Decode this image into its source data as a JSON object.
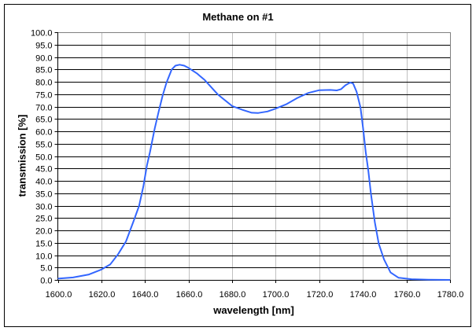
{
  "chart_data": {
    "type": "line",
    "title": "Methane on  #1",
    "xlabel": "wavelength [nm]",
    "ylabel": "transmission [%]",
    "xlim": [
      1600,
      1780
    ],
    "ylim": [
      0,
      100
    ],
    "x_ticks": [
      "1600.0",
      "1620.0",
      "1640.0",
      "1660.0",
      "1680.0",
      "1700.0",
      "1720.0",
      "1740.0",
      "1760.0",
      "1780.0"
    ],
    "y_ticks": [
      "0.0",
      "5.0",
      "10.0",
      "15.0",
      "20.0",
      "25.0",
      "30.0",
      "35.0",
      "40.0",
      "45.0",
      "50.0",
      "55.0",
      "60.0",
      "65.0",
      "70.0",
      "75.0",
      "80.0",
      "85.0",
      "90.0",
      "95.0",
      "100.0"
    ],
    "grid": {
      "horizontal": true,
      "vertical": true,
      "horizontal_color": "#000000",
      "vertical_color": "#c0c0c0"
    },
    "legend": null,
    "series": [
      {
        "name": "Methane on #1",
        "color": "#3366ff",
        "x": [
          1600,
          1607,
          1614.3,
          1620,
          1624.1,
          1627.7,
          1631.3,
          1634.9,
          1637.3,
          1639.3,
          1640.9,
          1642.3,
          1644.5,
          1646.3,
          1648.1,
          1649.9,
          1652.3,
          1654,
          1655.9,
          1658,
          1660,
          1663.8,
          1667.4,
          1673.4,
          1680,
          1685,
          1689,
          1692,
          1696.2,
          1699.8,
          1705,
          1710,
          1715,
          1720,
          1725,
          1728,
          1730,
          1732,
          1734.2,
          1735.5,
          1737.1,
          1738.9,
          1740.1,
          1741.3,
          1742.5,
          1743.7,
          1745.5,
          1747.3,
          1749.7,
          1752.7,
          1756.3,
          1762.3,
          1770,
          1780
        ],
        "values": [
          0.5,
          1.0,
          2.2,
          4.2,
          6.3,
          10.4,
          15.6,
          24.1,
          29.9,
          37.9,
          46.3,
          51.6,
          61.2,
          68.0,
          74.4,
          79.7,
          85.0,
          86.5,
          86.9,
          86.5,
          85.6,
          83.4,
          80.7,
          74.9,
          70.2,
          68.6,
          67.5,
          67.4,
          68.0,
          69.1,
          71.0,
          73.5,
          75.5,
          76.6,
          76.7,
          76.5,
          77.0,
          78.6,
          79.7,
          79.3,
          76.0,
          69.6,
          61.2,
          51.7,
          44.2,
          34.7,
          23.1,
          14.6,
          8.3,
          3.0,
          0.9,
          0.3,
          0.1,
          0.0
        ]
      }
    ]
  }
}
